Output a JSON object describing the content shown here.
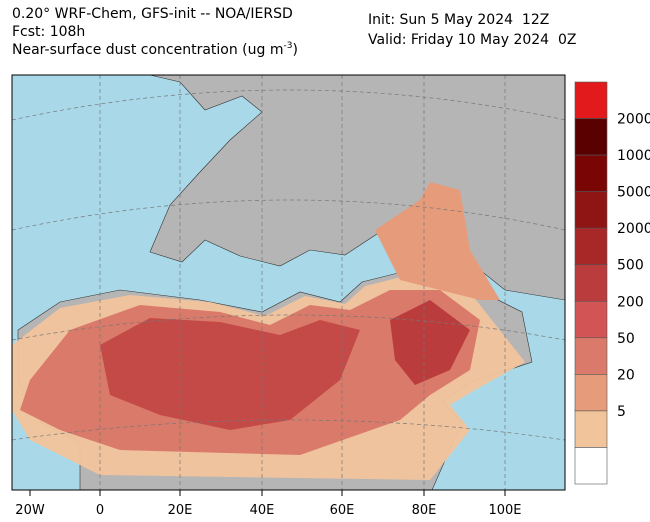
{
  "header": {
    "line1": "0.20° WRF-Chem, GFS-init -- NOA/IERSD",
    "line2": "Fcst: 108h",
    "line3": "Near-surface dust concentration (ug m",
    "line3_sup": "-3",
    "line3_end": ")",
    "init": "Init: Sun 5 May 2024  12Z",
    "valid": "Valid: Friday 10 May 2024  0Z"
  },
  "legend": {
    "colors": [
      "#e31a1c",
      "#5a0000",
      "#7a0505",
      "#8f1414",
      "#a82828",
      "#bb3c3c",
      "#d25454",
      "#da7a6a",
      "#e69c7a",
      "#f2c49c",
      "#ffffff"
    ],
    "labels": [
      "2000",
      "1000",
      "5000",
      "2000",
      "500",
      "200",
      "50",
      "20",
      "5"
    ]
  },
  "lon_labels": [
    "20W",
    "0",
    "20E",
    "40E",
    "60E",
    "80E",
    "100E"
  ]
}
